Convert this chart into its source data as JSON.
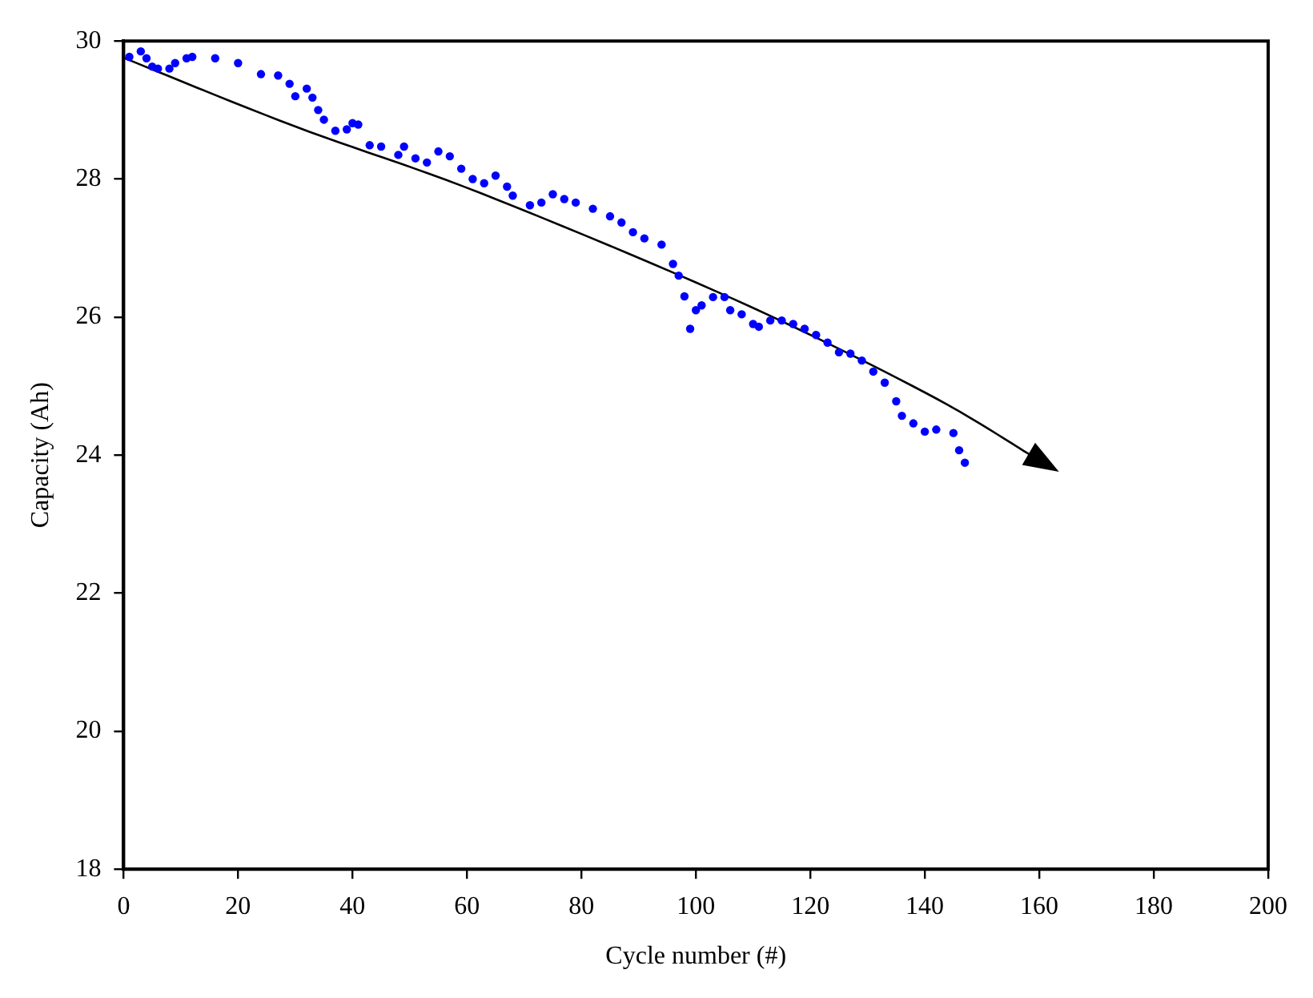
{
  "chart_data": {
    "type": "scatter",
    "xlabel": "Cycle number (#)",
    "ylabel": "Capacity (Ah)",
    "xlim": [
      0,
      200
    ],
    "xticks": [
      0,
      20,
      40,
      60,
      80,
      100,
      120,
      140,
      160,
      180,
      200
    ],
    "ylim": [
      18,
      30
    ],
    "yticks": [
      18,
      20,
      22,
      24,
      26,
      28,
      30
    ],
    "grid": false,
    "legend": false,
    "marker": "circle",
    "series": [
      {
        "color": "#0000ff",
        "x": [
          1,
          3,
          4,
          5,
          6,
          8,
          9,
          11,
          12,
          16,
          20,
          24,
          27,
          29,
          30,
          32,
          33,
          34,
          35,
          37,
          39,
          40,
          41,
          43,
          45,
          48,
          49,
          51,
          53,
          55,
          57,
          59,
          61,
          63,
          65,
          67,
          68,
          71,
          73,
          75,
          77,
          79,
          82,
          85,
          87,
          89,
          91,
          94,
          96,
          97,
          98,
          99,
          100,
          101,
          103,
          105,
          106,
          108,
          110,
          111,
          113,
          115,
          117,
          119,
          121,
          123,
          125,
          127,
          129,
          131,
          133,
          135,
          136,
          138,
          140,
          142,
          145,
          146,
          147
        ],
        "values": [
          29.77,
          29.85,
          29.75,
          29.63,
          29.6,
          29.6,
          29.68,
          29.75,
          29.77,
          29.75,
          29.68,
          29.52,
          29.5,
          29.38,
          29.2,
          29.31,
          29.18,
          29.0,
          28.86,
          28.7,
          28.72,
          28.81,
          28.79,
          28.49,
          28.47,
          28.35,
          28.47,
          28.3,
          28.24,
          28.4,
          28.33,
          28.15,
          28.0,
          27.94,
          28.05,
          27.89,
          27.76,
          27.62,
          27.66,
          27.78,
          27.71,
          27.66,
          27.57,
          27.46,
          27.37,
          27.23,
          27.14,
          27.05,
          26.77,
          26.6,
          26.3,
          25.83,
          26.1,
          26.17,
          26.29,
          26.29,
          26.1,
          26.04,
          25.9,
          25.86,
          25.95,
          25.95,
          25.9,
          25.83,
          25.74,
          25.63,
          25.49,
          25.47,
          25.37,
          25.21,
          25.05,
          24.78,
          24.57,
          24.46,
          24.34,
          24.37,
          24.32,
          24.07,
          23.89
        ]
      }
    ]
  }
}
